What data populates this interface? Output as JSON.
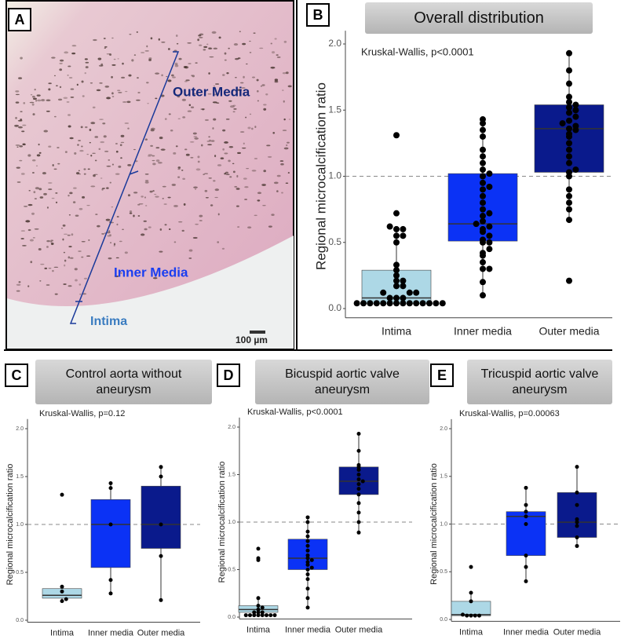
{
  "image_panel": {
    "panel": "A",
    "labels": {
      "outer": "Outer Media",
      "inner": "Inner Media",
      "intima": "Intima",
      "scale": "100 µm"
    }
  },
  "chart_data": [
    {
      "type": "box",
      "panel": "B",
      "title": "Overall distribution",
      "annotation": "Kruskal-Wallis, p<0.0001",
      "ylabel": "Regional microcalcification ratio",
      "categories": [
        "Intima",
        "Inner media",
        "Outer media"
      ],
      "colors": [
        "#add8e6",
        "#0b32f5",
        "#0a1a8c"
      ],
      "ylim": [
        -0.07,
        2.1
      ],
      "yticks": [
        {
          "value": 0,
          "label": "0.0"
        },
        {
          "value": 0.5,
          "label": "0.5"
        },
        {
          "value": 1,
          "label": "1.0"
        },
        {
          "value": 1.5,
          "label": "1.5"
        },
        {
          "value": 2,
          "label": "2.0"
        }
      ],
      "reference_line": 1.0,
      "boxes": [
        {
          "whisker_low": 0.04,
          "q1": 0.04,
          "median": 0.08,
          "q3": 0.29,
          "whisker_high": 0.62,
          "points": [
            0.04,
            0.04,
            0.04,
            0.04,
            0.04,
            0.04,
            0.04,
            0.04,
            0.04,
            0.04,
            0.04,
            0.04,
            0.04,
            0.04,
            0.08,
            0.08,
            0.08,
            0.12,
            0.12,
            0.12,
            0.17,
            0.17,
            0.21,
            0.21,
            0.25,
            0.29,
            0.33,
            0.5,
            0.55,
            0.55,
            0.6,
            0.6,
            0.62,
            0.72,
            1.31
          ]
        },
        {
          "whisker_low": 0.1,
          "q1": 0.51,
          "median": 0.64,
          "q3": 1.02,
          "whisker_high": 1.43,
          "points": [
            0.1,
            0.2,
            0.3,
            0.3,
            0.35,
            0.4,
            0.42,
            0.45,
            0.5,
            0.5,
            0.52,
            0.55,
            0.58,
            0.6,
            0.62,
            0.64,
            0.66,
            0.7,
            0.72,
            0.75,
            0.8,
            0.85,
            0.9,
            0.92,
            0.95,
            1.0,
            1.02,
            1.05,
            1.1,
            1.15,
            1.2,
            1.3,
            1.35,
            1.4,
            1.43
          ]
        },
        {
          "whisker_low": 0.67,
          "q1": 1.03,
          "median": 1.36,
          "q3": 1.54,
          "whisker_high": 1.93,
          "points": [
            0.21,
            0.67,
            0.75,
            0.8,
            0.85,
            0.9,
            1.0,
            1.03,
            1.05,
            1.1,
            1.15,
            1.2,
            1.25,
            1.3,
            1.32,
            1.35,
            1.36,
            1.38,
            1.4,
            1.42,
            1.45,
            1.48,
            1.5,
            1.52,
            1.54,
            1.56,
            1.6,
            1.7,
            1.8,
            1.93
          ]
        }
      ]
    },
    {
      "type": "box",
      "panel": "C",
      "title": "Control aorta without aneurysm",
      "annotation": "Kruskal-Wallis, p=0.12",
      "ylabel": "Regional microcalcification ratio",
      "categories": [
        "Intima",
        "Inner media",
        "Outer media"
      ],
      "colors": [
        "#add8e6",
        "#0b32f5",
        "#0a1a8c"
      ],
      "ylim": [
        -0.02,
        2.1
      ],
      "yticks": [
        {
          "value": 0,
          "label": "0.0"
        },
        {
          "value": 0.5,
          "label": "0.5"
        },
        {
          "value": 1,
          "label": "1.0"
        },
        {
          "value": 1.5,
          "label": "1.5"
        },
        {
          "value": 2,
          "label": "2.0"
        }
      ],
      "reference_line": 1.0,
      "boxes": [
        {
          "whisker_low": 0.2,
          "q1": 0.23,
          "median": 0.26,
          "q3": 0.33,
          "whisker_high": 0.35,
          "points": [
            0.2,
            0.22,
            0.3,
            0.35,
            1.31
          ]
        },
        {
          "whisker_low": 0.28,
          "q1": 0.55,
          "median": 1.0,
          "q3": 1.26,
          "whisker_high": 1.43,
          "points": [
            0.28,
            0.42,
            1.0,
            1.38,
            1.43
          ]
        },
        {
          "whisker_low": 0.21,
          "q1": 0.75,
          "median": 1.0,
          "q3": 1.4,
          "whisker_high": 1.6,
          "points": [
            0.21,
            0.67,
            1.0,
            1.5,
            1.6
          ]
        }
      ]
    },
    {
      "type": "box",
      "panel": "D",
      "title": "Bicuspid aortic valve aneurysm",
      "annotation": "Kruskal-Wallis, p<0.0001",
      "ylabel": "Regional microcalcification ratio",
      "categories": [
        "Intima",
        "Inner media",
        "Outer media"
      ],
      "colors": [
        "#add8e6",
        "#0b32f5",
        "#0a1a8c"
      ],
      "ylim": [
        -0.02,
        2.1
      ],
      "yticks": [
        {
          "value": 0,
          "label": "0.0"
        },
        {
          "value": 0.5,
          "label": "0.5"
        },
        {
          "value": 1,
          "label": "1.0"
        },
        {
          "value": 1.5,
          "label": "1.5"
        },
        {
          "value": 2,
          "label": "2.0"
        }
      ],
      "reference_line": 1.0,
      "boxes": [
        {
          "whisker_low": 0.02,
          "q1": 0.05,
          "median": 0.08,
          "q3": 0.12,
          "whisker_high": 0.2,
          "points": [
            0.02,
            0.02,
            0.02,
            0.02,
            0.02,
            0.02,
            0.02,
            0.02,
            0.05,
            0.05,
            0.05,
            0.08,
            0.1,
            0.12,
            0.2,
            0.6,
            0.62,
            0.72
          ]
        },
        {
          "whisker_low": 0.1,
          "q1": 0.5,
          "median": 0.62,
          "q3": 0.82,
          "whisker_high": 1.05,
          "points": [
            0.1,
            0.2,
            0.3,
            0.4,
            0.45,
            0.5,
            0.52,
            0.55,
            0.58,
            0.6,
            0.62,
            0.65,
            0.7,
            0.75,
            0.8,
            0.85,
            0.9,
            1.0,
            1.05
          ]
        },
        {
          "whisker_low": 0.89,
          "q1": 1.29,
          "median": 1.43,
          "q3": 1.58,
          "whisker_high": 1.93,
          "points": [
            0.89,
            1.0,
            1.1,
            1.2,
            1.29,
            1.35,
            1.4,
            1.43,
            1.45,
            1.5,
            1.55,
            1.58,
            1.6,
            1.75,
            1.93
          ]
        }
      ]
    },
    {
      "type": "box",
      "panel": "E",
      "title": "Tricuspid aortic valve aneurysm",
      "annotation": "Kruskal-Wallis, p=0.00063",
      "ylabel": "Regional microcalcification ratio",
      "categories": [
        "Intima",
        "Inner media",
        "Outer media"
      ],
      "colors": [
        "#add8e6",
        "#0b32f5",
        "#0a1a8c"
      ],
      "ylim": [
        -0.02,
        2.1
      ],
      "yticks": [
        {
          "value": 0,
          "label": "0.0"
        },
        {
          "value": 0.5,
          "label": "0.5"
        },
        {
          "value": 1,
          "label": "1.0"
        },
        {
          "value": 1.5,
          "label": "1.5"
        },
        {
          "value": 2,
          "label": "2.0"
        }
      ],
      "reference_line": 1.0,
      "boxes": [
        {
          "whisker_low": 0.04,
          "q1": 0.04,
          "median": 0.05,
          "q3": 0.19,
          "whisker_high": 0.28,
          "points": [
            0.04,
            0.04,
            0.04,
            0.04,
            0.05,
            0.19,
            0.28,
            0.55
          ]
        },
        {
          "whisker_low": 0.4,
          "q1": 0.67,
          "median": 1.08,
          "q3": 1.13,
          "whisker_high": 1.38,
          "points": [
            0.4,
            0.55,
            0.67,
            1.0,
            1.08,
            1.13,
            1.2,
            1.38
          ]
        },
        {
          "whisker_low": 0.77,
          "q1": 0.86,
          "median": 1.02,
          "q3": 1.33,
          "whisker_high": 1.6,
          "points": [
            0.77,
            0.86,
            0.98,
            1.02,
            1.05,
            1.2,
            1.33,
            1.6
          ]
        }
      ]
    }
  ]
}
